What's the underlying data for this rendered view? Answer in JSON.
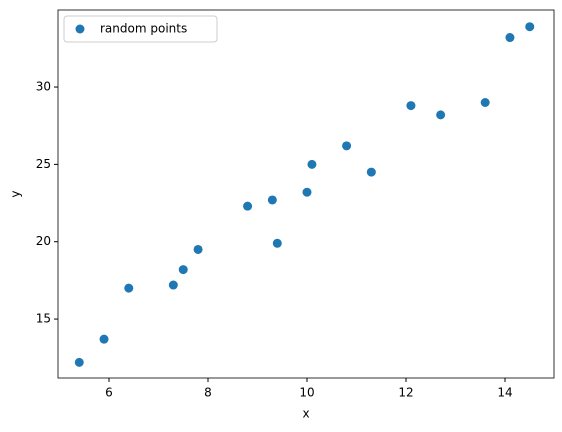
{
  "chart_data": {
    "type": "scatter",
    "xlabel": "x",
    "ylabel": "y",
    "series": [
      {
        "name": "random points",
        "color": "#1f77b4",
        "x": [
          5.4,
          5.9,
          6.4,
          7.3,
          7.5,
          7.8,
          8.8,
          9.3,
          9.4,
          10.0,
          10.1,
          10.8,
          11.3,
          12.1,
          12.7,
          13.6,
          14.1,
          14.5
        ],
        "values": [
          12.2,
          13.7,
          17.0,
          17.2,
          18.2,
          19.5,
          22.3,
          22.7,
          19.9,
          23.2,
          25.0,
          26.2,
          24.5,
          28.8,
          28.2,
          29.0,
          33.2,
          33.9
        ]
      }
    ],
    "xlim": [
      4.97,
      14.99
    ],
    "xticks": [
      6,
      8,
      10,
      12,
      14
    ],
    "ylim": [
      11.19,
      34.98
    ],
    "yticks": [
      15,
      20,
      25,
      30
    ],
    "legend": "upper left"
  }
}
